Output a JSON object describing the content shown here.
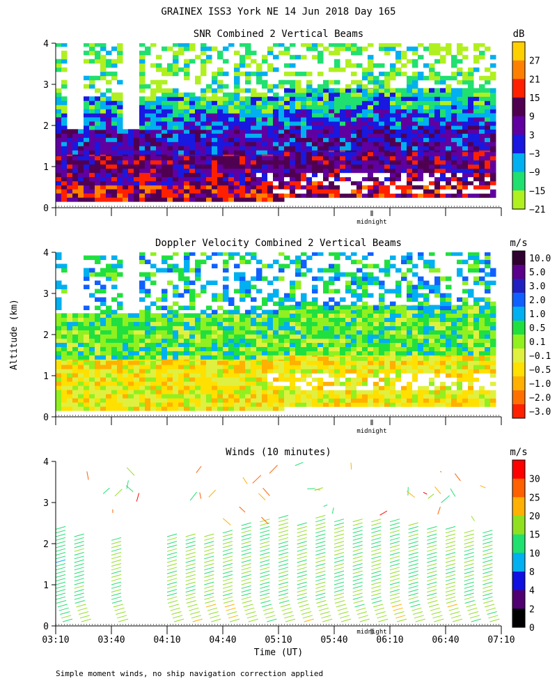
{
  "figure_title": "GRAINEX ISS3 York NE  14 Jun 2018 Day 165",
  "y_axis_label": "Altitude (km)",
  "x_axis_label": "Time (UT)",
  "footnote": "Simple moment winds, no ship navigation correction applied",
  "midnight_label": "midnight",
  "chart_data": [
    {
      "type": "heatmap",
      "title": "SNR Combined 2 Vertical Beams",
      "unit": "dB",
      "ylim": [
        0,
        4
      ],
      "yticks": [
        "0",
        "1",
        "2",
        "3",
        "4"
      ],
      "colorbar_labels": [
        "27",
        "21",
        "15",
        "9",
        "3",
        "−3",
        "−9",
        "−15",
        "−21"
      ],
      "colorbar_colors": [
        "#ffd000",
        "#ff8000",
        "#ff2000",
        "#500050",
        "#6000a0",
        "#1818e0",
        "#00b0f0",
        "#20e070",
        "#b0f020"
      ],
      "layers": [
        {
          "alt_range_km": [
            0.15,
            0.55
          ],
          "level_db": 9
        },
        {
          "alt_range_km": [
            0.55,
            1.3
          ],
          "level_db": 3
        },
        {
          "alt_range_km": [
            1.3,
            1.9
          ],
          "level_db": -3
        },
        {
          "alt_range_km": [
            1.9,
            2.3
          ],
          "level_db": -9
        },
        {
          "alt_range_km": [
            2.3,
            2.7
          ],
          "level_db": -15
        },
        {
          "alt_range_km": [
            2.7,
            4.0
          ],
          "level_db": -21
        }
      ]
    },
    {
      "type": "heatmap",
      "title": "Doppler Velocity Combined 2 Vertical Beams",
      "unit": "m/s",
      "ylim": [
        0,
        4
      ],
      "yticks": [
        "0",
        "1",
        "2",
        "3",
        "4"
      ],
      "colorbar_labels": [
        "10.0",
        "5.0",
        "3.0",
        "2.0",
        "1.0",
        "0.5",
        "0.1",
        "−0.1",
        "−0.5",
        "−1.0",
        "−2.0",
        "−3.0"
      ],
      "colorbar_colors": [
        "#300030",
        "#5a008a",
        "#2020c0",
        "#1060ff",
        "#00b0f0",
        "#20e040",
        "#90f020",
        "#e0f040",
        "#ffe000",
        "#ffb000",
        "#ff7000",
        "#ff2000"
      ],
      "layers": [
        {
          "alt_range_km": [
            0.15,
            1.4
          ],
          "level_ms": -0.5
        },
        {
          "alt_range_km": [
            1.4,
            2.5
          ],
          "level_ms": 0.1
        },
        {
          "alt_range_km": [
            2.5,
            4.0
          ],
          "level_ms": 0.5
        }
      ]
    },
    {
      "type": "scatter",
      "title": "Winds (10 minutes)",
      "unit": "m/s",
      "ylim": [
        0,
        4
      ],
      "yticks": [
        "0",
        "1",
        "2",
        "3",
        "4"
      ],
      "xticks": [
        "03:10",
        "03:40",
        "04:10",
        "04:40",
        "05:10",
        "05:40",
        "06:10",
        "06:40",
        "07:10"
      ],
      "xlim": [
        "03:10",
        "07:10"
      ],
      "colorbar_labels": [
        "30",
        "25",
        "20",
        "15",
        "10",
        "8",
        "4",
        "2",
        "0"
      ],
      "colorbar_colors": [
        "#ff0000",
        "#ff6000",
        "#ffb000",
        "#90e020",
        "#20e070",
        "#00b0f0",
        "#1010e0",
        "#500070",
        "#000000"
      ],
      "profiles": [
        {
          "time": "03:10",
          "top_km": 2.4,
          "speed_ms": 12
        },
        {
          "time": "03:20",
          "top_km": 2.2,
          "speed_ms": 14
        },
        {
          "time": "03:40",
          "top_km": 2.1,
          "speed_ms": 15
        },
        {
          "time": "04:10",
          "top_km": 2.2,
          "speed_ms": 14
        },
        {
          "time": "04:20",
          "top_km": 2.2,
          "speed_ms": 15
        },
        {
          "time": "04:30",
          "top_km": 2.2,
          "speed_ms": 16
        },
        {
          "time": "04:40",
          "top_km": 2.3,
          "speed_ms": 16
        },
        {
          "time": "04:50",
          "top_km": 2.5,
          "speed_ms": 15
        },
        {
          "time": "05:00",
          "top_km": 2.6,
          "speed_ms": 14
        },
        {
          "time": "05:10",
          "top_km": 2.7,
          "speed_ms": 15
        },
        {
          "time": "05:20",
          "top_km": 2.5,
          "speed_ms": 16
        },
        {
          "time": "05:30",
          "top_km": 2.7,
          "speed_ms": 15
        },
        {
          "time": "05:40",
          "top_km": 2.6,
          "speed_ms": 15
        },
        {
          "time": "05:50",
          "top_km": 2.6,
          "speed_ms": 14
        },
        {
          "time": "06:00",
          "top_km": 2.6,
          "speed_ms": 15
        },
        {
          "time": "06:10",
          "top_km": 2.6,
          "speed_ms": 15
        },
        {
          "time": "06:20",
          "top_km": 2.5,
          "speed_ms": 14
        },
        {
          "time": "06:30",
          "top_km": 2.4,
          "speed_ms": 15
        },
        {
          "time": "06:40",
          "top_km": 2.4,
          "speed_ms": 15
        },
        {
          "time": "06:50",
          "top_km": 2.3,
          "speed_ms": 14
        },
        {
          "time": "07:00",
          "top_km": 2.3,
          "speed_ms": 14
        }
      ]
    }
  ]
}
